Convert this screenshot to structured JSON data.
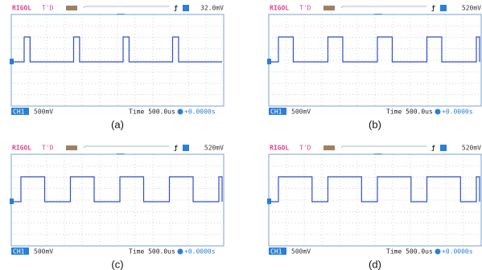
{
  "panels": [
    {
      "brand": "RIGOL",
      "status": "T'D",
      "trigger_level": "32.0mV",
      "channel": "CH1",
      "scale": "500mV",
      "timebase": "Time 500.0us",
      "offset": "+0.0000s",
      "caption": "(a)"
    },
    {
      "brand": "RIGOL",
      "status": "T'D",
      "trigger_level": "520mV",
      "channel": "CH1",
      "scale": "500mV",
      "timebase": "Time 500.0us",
      "offset": "+0.0000s",
      "caption": "(b)"
    },
    {
      "brand": "RIGOL",
      "status": "T'D",
      "trigger_level": "520mV",
      "channel": "CH1",
      "scale": "500mV",
      "timebase": "Time 500.0us",
      "offset": "+0.0000s",
      "caption": "(c)"
    },
    {
      "brand": "RIGOL",
      "status": "T'D",
      "trigger_level": "520mV",
      "channel": "CH1",
      "scale": "500mV",
      "timebase": "Time 500.0us",
      "offset": "+0.0000s",
      "caption": "(d)"
    }
  ]
}
